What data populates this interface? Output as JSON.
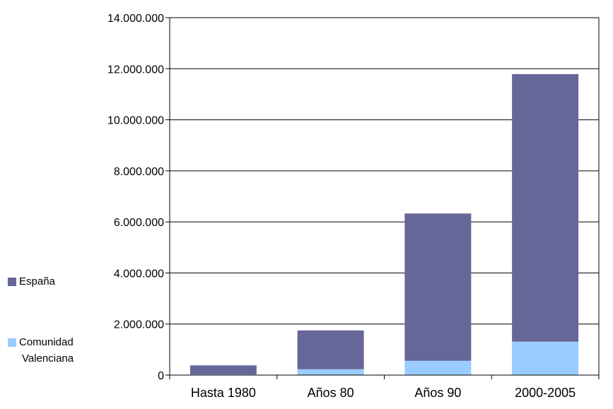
{
  "chart_data": {
    "type": "bar",
    "stacked": true,
    "categories": [
      "Hasta 1980",
      "Años 80",
      "Años 90",
      "2000-2005"
    ],
    "series": [
      {
        "name": "Comunidad Valenciana",
        "values": [
          30000,
          230000,
          560000,
          1310000
        ],
        "color": "#99ccff"
      },
      {
        "name": "España",
        "values": [
          350000,
          1520000,
          5770000,
          10480000
        ],
        "color": "#666699"
      }
    ],
    "ylim": [
      0,
      14000000
    ],
    "y_ticks": [
      0,
      2000000,
      4000000,
      6000000,
      8000000,
      10000000,
      12000000,
      14000000
    ],
    "y_tick_labels": [
      "0",
      "2.000.000",
      "4.000.000",
      "6.000.000",
      "8.000.000",
      "10.000.000",
      "12.000.000",
      "14.000.000"
    ],
    "legend": {
      "placement": "left",
      "entries": [
        {
          "label_lines": [
            "España"
          ],
          "color": "#666699"
        },
        {
          "label_lines": [
            "Comunidad",
            "Valenciana"
          ],
          "color": "#99ccff"
        }
      ]
    },
    "grid": true,
    "title": "",
    "xlabel": "",
    "ylabel": ""
  }
}
